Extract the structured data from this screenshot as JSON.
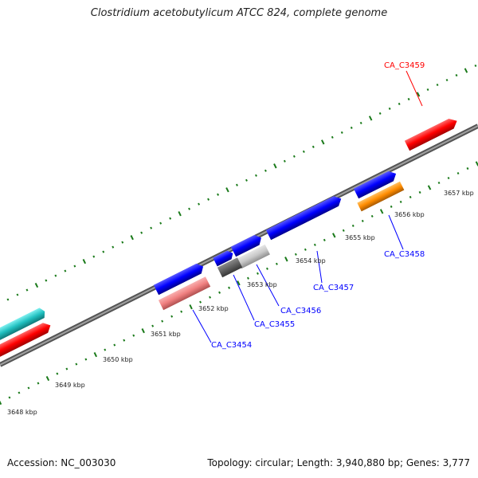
{
  "title": "Clostridium acetobutylicum ATCC 824, complete genome",
  "footer": {
    "accession": "Accession: NC_003030",
    "summary": "Topology: circular; Length: 3,940,880 bp; Genes: 3,777"
  },
  "colors": {
    "backbone": "#808080",
    "tick": "#1a7a1a",
    "forward_gene": "#0000ff",
    "label_blue": "#0000ff",
    "label_red": "#ff0000",
    "red_gene": "#ff0000",
    "pink_gene": "#f08080",
    "orange_gene": "#ff8c00",
    "cyan_gene": "#20c0c0",
    "gray_dark": "#606060",
    "gray_light": "#c8c8c8"
  },
  "scale_labels": [
    {
      "label": "3648 kbp"
    },
    {
      "label": "3649 kbp"
    },
    {
      "label": "3650 kbp"
    },
    {
      "label": "3651 kbp"
    },
    {
      "label": "3652 kbp"
    },
    {
      "label": "3653 kbp"
    },
    {
      "label": "3654 kbp"
    },
    {
      "label": "3655 kbp"
    },
    {
      "label": "3656 kbp"
    },
    {
      "label": "3657 kbp"
    }
  ],
  "gene_labels": [
    {
      "label": "CA_C3459",
      "color": "red"
    },
    {
      "label": "CA_C3458",
      "color": "blue"
    },
    {
      "label": "CA_C3457",
      "color": "blue"
    },
    {
      "label": "CA_C3456",
      "color": "blue"
    },
    {
      "label": "CA_C3455",
      "color": "blue"
    },
    {
      "label": "CA_C3454",
      "color": "blue"
    }
  ]
}
